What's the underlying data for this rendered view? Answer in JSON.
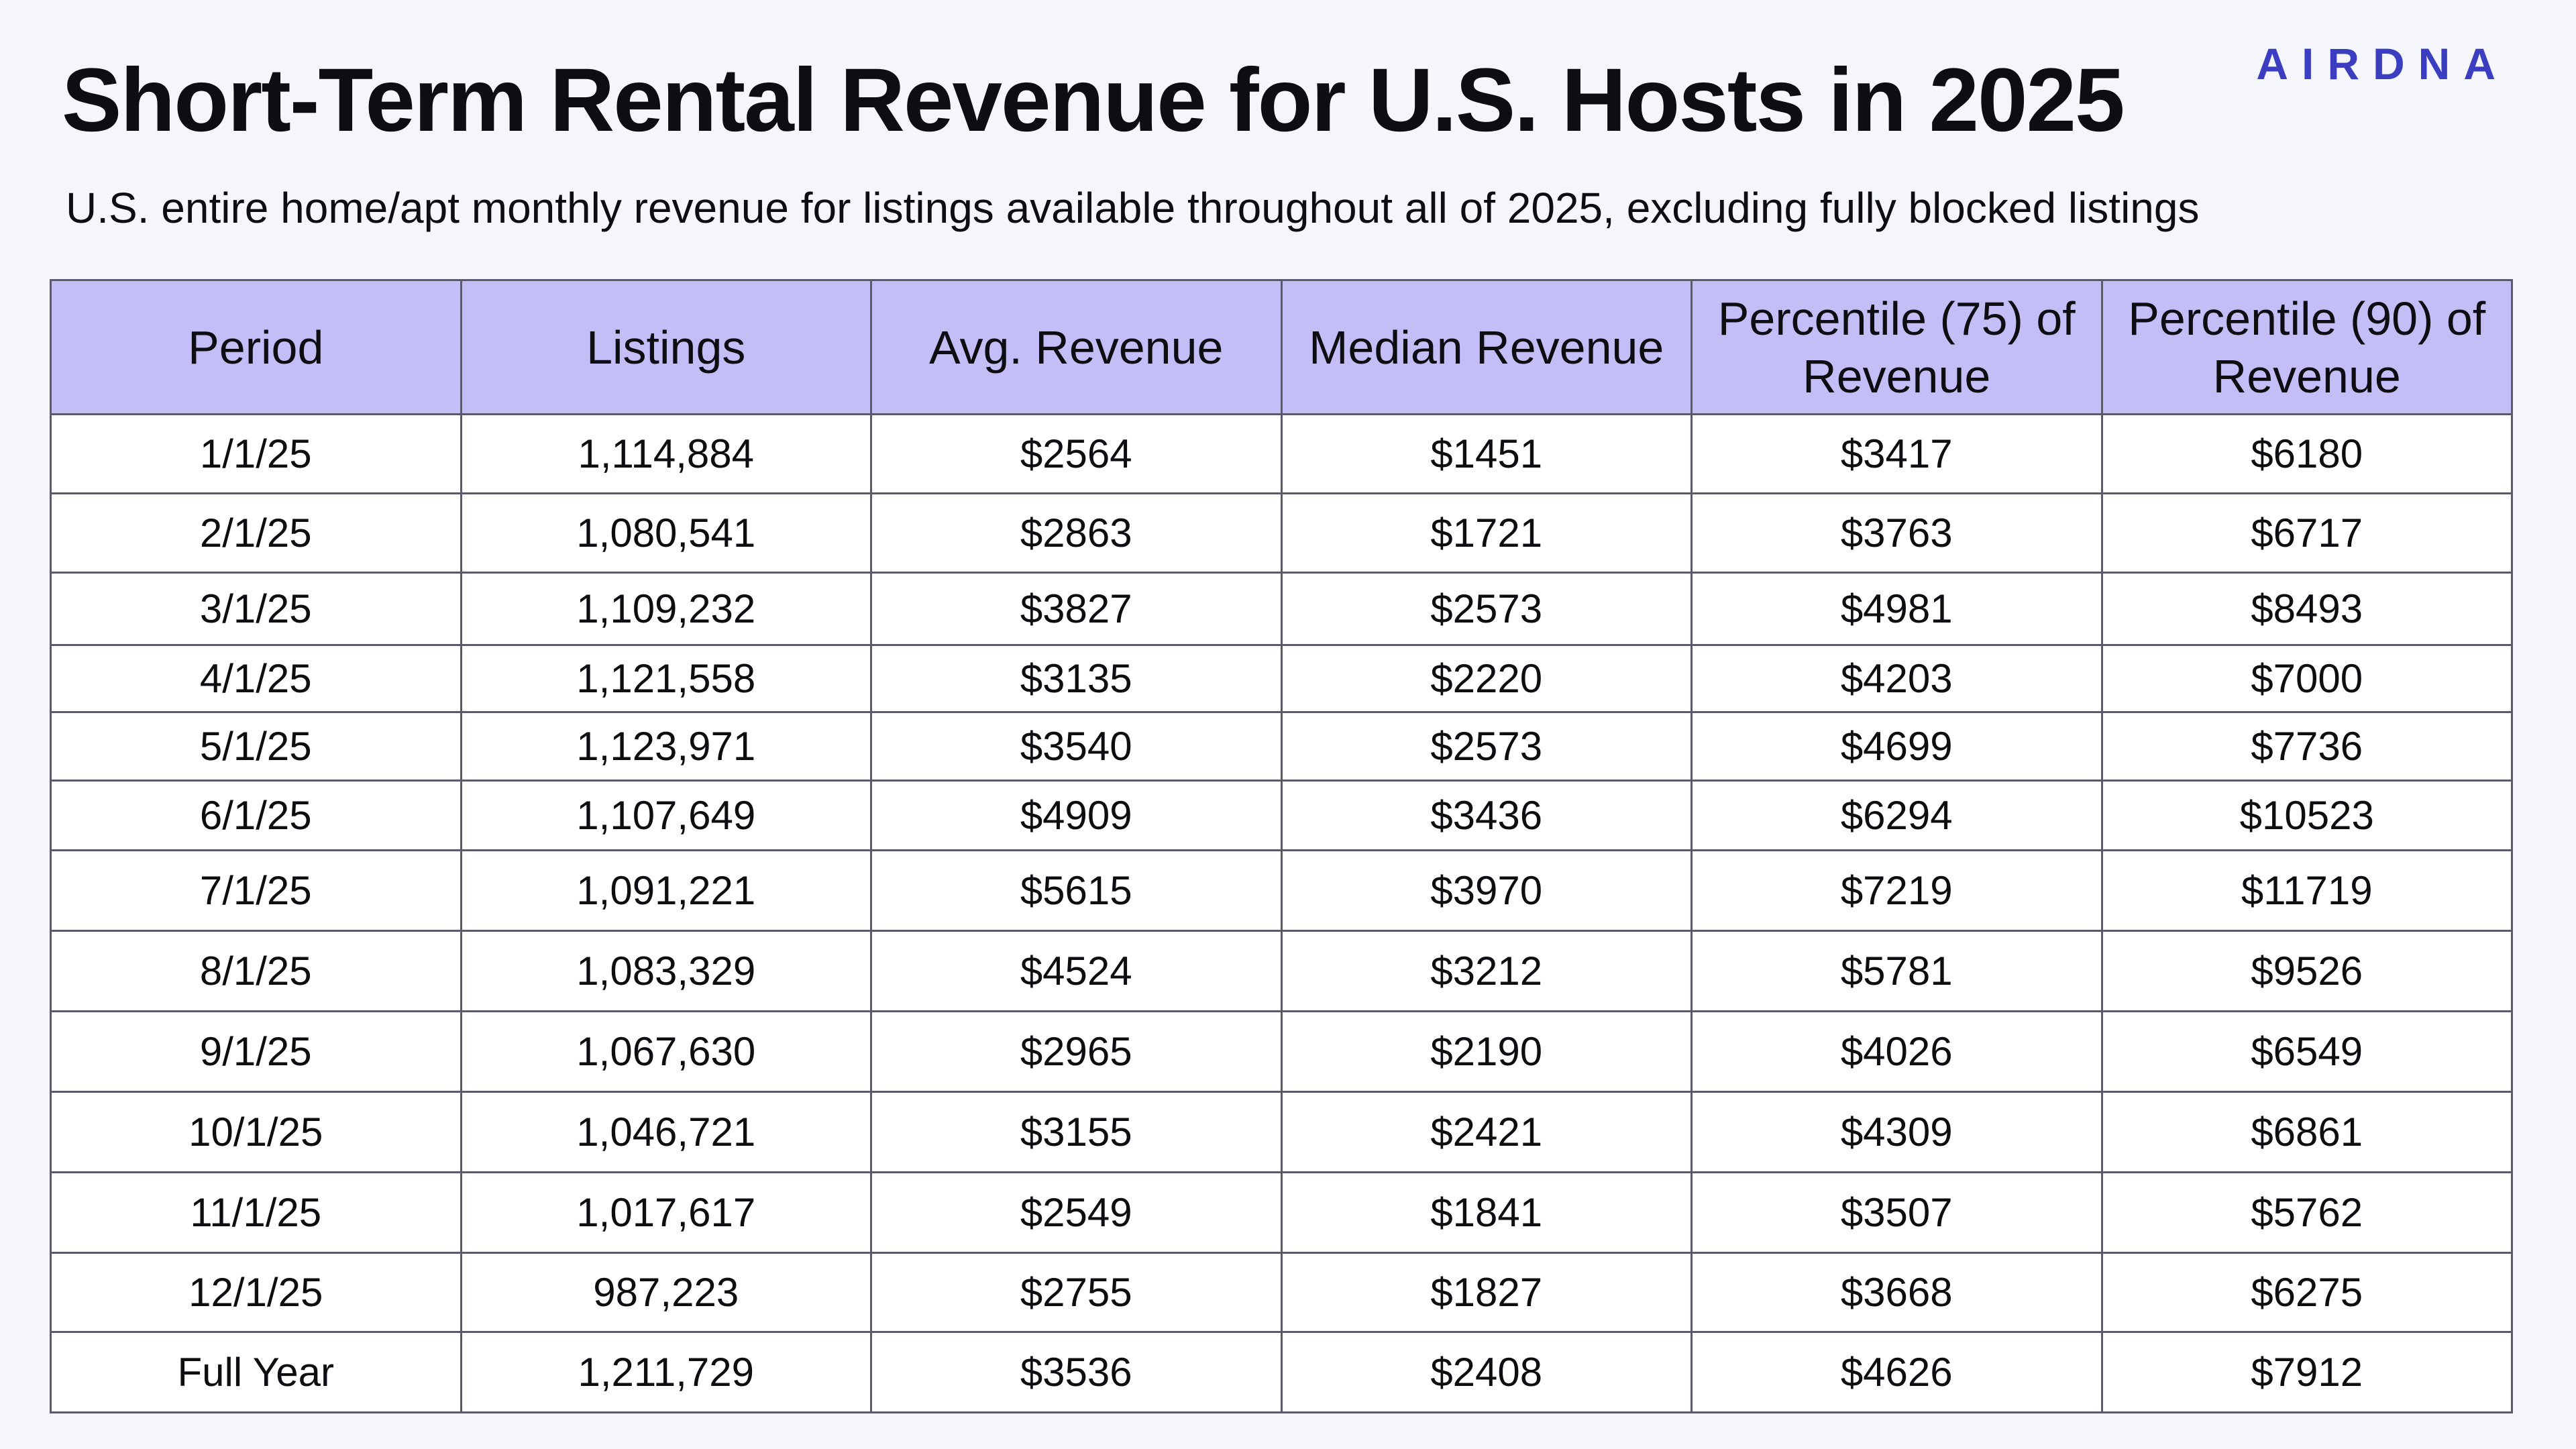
{
  "brand": "AIRDNA",
  "title": "Short-Term Rental Revenue for U.S. Hosts in 2025",
  "subtitle": "U.S. entire home/apt monthly revenue for listings available throughout all of 2025, excluding fully blocked listings",
  "colors": {
    "header_bg": "#c4bef7",
    "brand": "#3b3fbf",
    "border": "#5a5a6b"
  },
  "chart_data": {
    "type": "table",
    "columns": [
      "Period",
      "Listings",
      "Avg. Revenue",
      "Median Revenue",
      "Percentile (75) of Revenue",
      "Percentile (90) of Revenue"
    ],
    "rows": [
      [
        "1/1/25",
        "1,114,884",
        "$2564",
        "$1451",
        "$3417",
        "$6180"
      ],
      [
        "2/1/25",
        "1,080,541",
        "$2863",
        "$1721",
        "$3763",
        "$6717"
      ],
      [
        "3/1/25",
        "1,109,232",
        "$3827",
        "$2573",
        "$4981",
        "$8493"
      ],
      [
        "4/1/25",
        "1,121,558",
        "$3135",
        "$2220",
        "$4203",
        "$7000"
      ],
      [
        "5/1/25",
        "1,123,971",
        "$3540",
        "$2573",
        "$4699",
        "$7736"
      ],
      [
        "6/1/25",
        "1,107,649",
        "$4909",
        "$3436",
        "$6294",
        "$10523"
      ],
      [
        "7/1/25",
        "1,091,221",
        "$5615",
        "$3970",
        "$7219",
        "$11719"
      ],
      [
        "8/1/25",
        "1,083,329",
        "$4524",
        "$3212",
        "$5781",
        "$9526"
      ],
      [
        "9/1/25",
        "1,067,630",
        "$2965",
        "$2190",
        "$4026",
        "$6549"
      ],
      [
        "10/1/25",
        "1,046,721",
        "$3155",
        "$2421",
        "$4309",
        "$6861"
      ],
      [
        "11/1/25",
        "1,017,617",
        "$2549",
        "$1841",
        "$3507",
        "$5762"
      ],
      [
        "12/1/25",
        "987,223",
        "$2755",
        "$1827",
        "$3668",
        "$6275"
      ],
      [
        "Full Year",
        "1,211,729",
        "$3536",
        "$2408",
        "$4626",
        "$7912"
      ]
    ]
  }
}
